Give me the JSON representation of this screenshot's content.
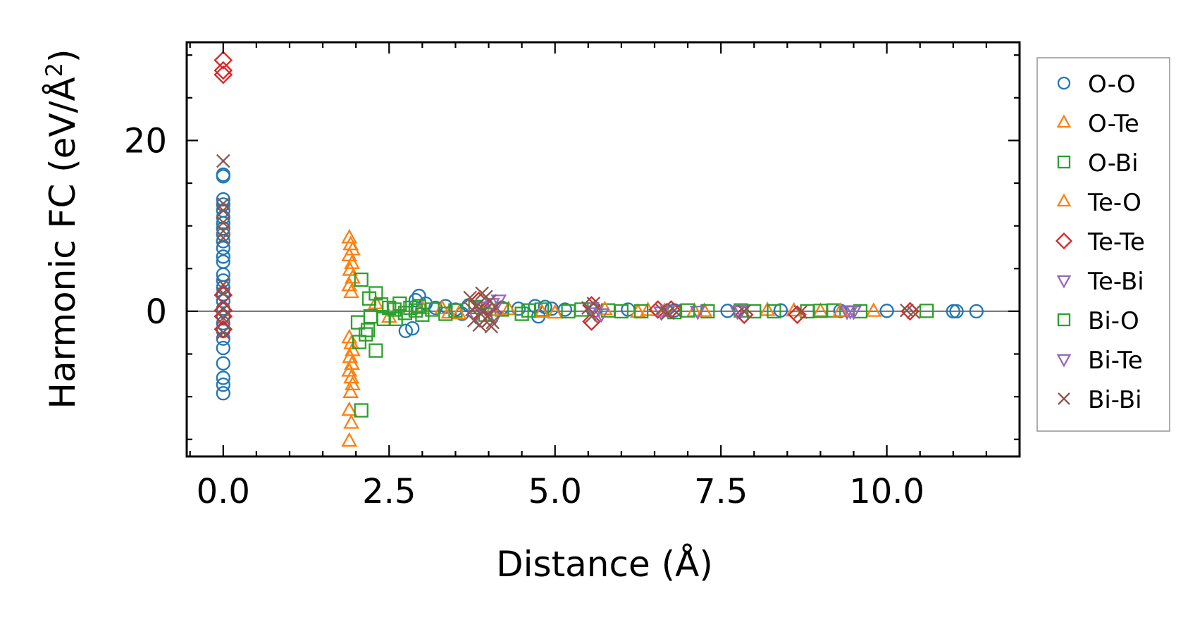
{
  "chart_data": {
    "type": "scatter",
    "title": "",
    "xlabel": "Distance (Å)",
    "ylabel_main": "Harmonic FC (eV/Å",
    "ylabel_sup": "2",
    "ylabel_close": ")",
    "xlim": [
      -0.55,
      12.0
    ],
    "ylim": [
      -17.0,
      31.5
    ],
    "xticks": [
      0.0,
      2.5,
      5.0,
      7.5,
      10.0
    ],
    "xtick_labels": [
      "0.0",
      "2.5",
      "5.0",
      "7.5",
      "10.0"
    ],
    "yticks": [
      0,
      20
    ],
    "ytick_labels": [
      "0",
      "20"
    ],
    "x_minor_step": 0.5,
    "y_minor_step": 5,
    "zero_line": true,
    "grid": false,
    "legend_position": "outside-right",
    "series": [
      {
        "name": "O-O",
        "marker": "circle",
        "color": "#1f77b4",
        "points": [
          [
            0,
            16
          ],
          [
            0,
            15.8
          ],
          [
            0,
            13.1
          ],
          [
            0,
            12.5
          ],
          [
            0,
            11.8
          ],
          [
            0,
            11
          ],
          [
            0,
            10.3
          ],
          [
            0,
            9.7
          ],
          [
            0,
            9
          ],
          [
            0,
            8.2
          ],
          [
            0,
            7.4
          ],
          [
            0,
            6.4
          ],
          [
            0,
            5.8
          ],
          [
            0,
            4.3
          ],
          [
            0,
            3.6
          ],
          [
            0,
            2.8
          ],
          [
            0,
            2
          ],
          [
            0,
            1.2
          ],
          [
            0,
            0.3
          ],
          [
            0,
            -0.6
          ],
          [
            0,
            -1.4
          ],
          [
            0,
            -2.3
          ],
          [
            0,
            -3.2
          ],
          [
            0,
            -4.3
          ],
          [
            0,
            -6.1
          ],
          [
            0,
            -7.8
          ],
          [
            0,
            -8.6
          ],
          [
            0,
            -9.6
          ],
          [
            2.75,
            -2.3
          ],
          [
            2.85,
            -2
          ],
          [
            2.9,
            1.3
          ],
          [
            2.95,
            1.8
          ],
          [
            3.05,
            0.9
          ],
          [
            3.2,
            0.4
          ],
          [
            3.35,
            0.6
          ],
          [
            3.5,
            0.2
          ],
          [
            3.6,
            -0.3
          ],
          [
            3.7,
            0.7
          ],
          [
            4.2,
            0.4
          ],
          [
            4.45,
            0.3
          ],
          [
            4.7,
            0.6
          ],
          [
            4.75,
            -0.6
          ],
          [
            4.85,
            0.5
          ],
          [
            4.95,
            0.3
          ],
          [
            5.15,
            0.2
          ],
          [
            5.6,
            0.1
          ],
          [
            6.1,
            0.2
          ],
          [
            6.8,
            0.1
          ],
          [
            7.6,
            0.05
          ],
          [
            8.4,
            0.1
          ],
          [
            9.3,
            0.05
          ],
          [
            10.0,
            0.05
          ],
          [
            11.0,
            0
          ],
          [
            11.05,
            0
          ],
          [
            11.35,
            0
          ]
        ]
      },
      {
        "name": "O-Te",
        "marker": "triangle-up",
        "color": "#ff7f0e",
        "points": [
          [
            1.9,
            8.6
          ],
          [
            1.92,
            7.8
          ],
          [
            1.95,
            7.2
          ],
          [
            1.9,
            6.5
          ],
          [
            1.94,
            5.6
          ],
          [
            1.91,
            4.8
          ],
          [
            1.95,
            3.9
          ],
          [
            1.9,
            3
          ],
          [
            1.93,
            2.2
          ],
          [
            1.9,
            -3.1
          ],
          [
            1.93,
            -3.8
          ],
          [
            1.95,
            -4.6
          ],
          [
            1.91,
            -5.4
          ],
          [
            1.94,
            -6.2
          ],
          [
            1.9,
            -7
          ],
          [
            1.93,
            -7.8
          ],
          [
            1.95,
            -8.6
          ],
          [
            1.92,
            -9.5
          ],
          [
            1.9,
            -11.6
          ],
          [
            1.93,
            -13.1
          ],
          [
            1.9,
            -15.2
          ],
          [
            2.3,
            0.9
          ],
          [
            2.5,
            -0.7
          ],
          [
            3.0,
            0.3
          ],
          [
            3.4,
            -0.2
          ],
          [
            4.3,
            0.2
          ],
          [
            5.0,
            -0.2
          ],
          [
            6.4,
            0.1
          ],
          [
            6.25,
            -0.1
          ],
          [
            7.25,
            0
          ],
          [
            8.2,
            0.1
          ],
          [
            9.0,
            0
          ],
          [
            9.8,
            0
          ]
        ]
      },
      {
        "name": "O-Bi",
        "marker": "square",
        "color": "#2ca02c",
        "points": [
          [
            2.08,
            3.7
          ],
          [
            2.03,
            -1.3
          ],
          [
            2.05,
            -3.6
          ],
          [
            2.08,
            -11.6
          ],
          [
            2.15,
            -2.7
          ],
          [
            2.18,
            -2.2
          ],
          [
            2.2,
            1.5
          ],
          [
            2.22,
            -0.6
          ],
          [
            2.3,
            -4.6
          ],
          [
            2.3,
            2.1
          ],
          [
            2.38,
            0.8
          ],
          [
            2.42,
            -0.9
          ],
          [
            2.5,
            0.4
          ],
          [
            2.58,
            0.2
          ],
          [
            2.66,
            0.9
          ],
          [
            2.74,
            -0.2
          ],
          [
            2.82,
            0.4
          ],
          [
            2.9,
            0.1
          ],
          [
            3.0,
            -0.4
          ],
          [
            3.15,
            0.2
          ],
          [
            3.5,
            0.1
          ],
          [
            3.8,
            0.5
          ],
          [
            4.2,
            0.2
          ],
          [
            4.5,
            -0.3
          ],
          [
            4.8,
            0.2
          ],
          [
            5.2,
            0
          ],
          [
            5.8,
            0.1
          ],
          [
            6.3,
            0
          ],
          [
            6.8,
            -0.1
          ],
          [
            7.3,
            0
          ],
          [
            7.8,
            0.1
          ],
          [
            8.3,
            0
          ],
          [
            8.8,
            0
          ],
          [
            9.2,
            0.1
          ],
          [
            9.6,
            0
          ]
        ]
      },
      {
        "name": "Te-O",
        "marker": "triangle-up",
        "color": "#ff7f0e",
        "points": [
          [
            3.3,
            0.3
          ],
          [
            3.55,
            -0.3
          ],
          [
            4.05,
            0.1
          ],
          [
            4.8,
            -0.1
          ],
          [
            5.75,
            0.2
          ],
          [
            6.65,
            0
          ],
          [
            7.1,
            0
          ],
          [
            8.6,
            0.05
          ],
          [
            9.3,
            0
          ]
        ]
      },
      {
        "name": "Te-Te",
        "marker": "diamond",
        "color": "#d62728",
        "points": [
          [
            0,
            29.4
          ],
          [
            0,
            28.2
          ],
          [
            0,
            27.7
          ],
          [
            0,
            1.9
          ],
          [
            0,
            0.1
          ],
          [
            0,
            -0.6
          ],
          [
            0,
            -2.1
          ],
          [
            3.85,
            1.2
          ],
          [
            3.9,
            -0.9
          ],
          [
            4.0,
            0.4
          ],
          [
            5.55,
            0.7
          ],
          [
            5.55,
            -1.2
          ],
          [
            6.55,
            0.2
          ],
          [
            6.75,
            0.2
          ],
          [
            7.85,
            -0.4
          ],
          [
            8.65,
            -0.4
          ],
          [
            10.35,
            0
          ]
        ]
      },
      {
        "name": "Te-Bi",
        "marker": "triangle-down",
        "color": "#9467bd",
        "points": [
          [
            3.9,
            0.5
          ],
          [
            4.15,
            1.3
          ],
          [
            4.1,
            -0.6
          ],
          [
            5.55,
            0.4
          ],
          [
            5.7,
            -0.3
          ],
          [
            6.7,
            0.1
          ],
          [
            7.15,
            0
          ],
          [
            7.8,
            0.1
          ],
          [
            9.4,
            0
          ],
          [
            9.5,
            0
          ]
        ]
      },
      {
        "name": "Bi-O",
        "marker": "square",
        "color": "#2ca02c",
        "points": [
          [
            2.6,
            -0.9
          ],
          [
            2.95,
            0.6
          ],
          [
            3.35,
            -0.3
          ],
          [
            3.95,
            -0.4
          ],
          [
            4.6,
            0.1
          ],
          [
            5.4,
            0.2
          ],
          [
            6.0,
            0
          ],
          [
            7.0,
            0.1
          ],
          [
            8.0,
            0
          ],
          [
            9.0,
            0.05
          ],
          [
            10.6,
            0.05
          ]
        ]
      },
      {
        "name": "Bi-Te",
        "marker": "triangle-down",
        "color": "#9467bd",
        "points": [
          [
            3.8,
            -0.5
          ],
          [
            4.05,
            0.9
          ],
          [
            5.6,
            -0.2
          ],
          [
            6.6,
            -0.1
          ],
          [
            7.75,
            0
          ],
          [
            9.45,
            0.05
          ]
        ]
      },
      {
        "name": "Bi-Bi",
        "marker": "x",
        "color": "#8c564b",
        "points": [
          [
            0,
            17.6
          ],
          [
            0,
            12.6
          ],
          [
            0,
            11.8
          ],
          [
            0,
            10.4
          ],
          [
            0,
            9.4
          ],
          [
            0,
            8.6
          ],
          [
            0,
            3.1
          ],
          [
            0,
            2.1
          ],
          [
            0,
            0.2
          ],
          [
            0,
            -0.8
          ],
          [
            0,
            -2.5
          ],
          [
            3.72,
            1.6
          ],
          [
            3.78,
            -1.1
          ],
          [
            3.82,
            0.6
          ],
          [
            3.86,
            -1.6
          ],
          [
            3.9,
            2.1
          ],
          [
            3.94,
            0.1
          ],
          [
            3.98,
            -0.6
          ],
          [
            4.02,
            1.2
          ],
          [
            4.06,
            -1.3
          ],
          [
            4.1,
            0.5
          ],
          [
            3.75,
            0.2
          ],
          [
            3.88,
            -0.3
          ],
          [
            3.96,
            1.7
          ],
          [
            4.04,
            -1.8
          ],
          [
            5.5,
            0.4
          ],
          [
            5.55,
            -0.6
          ],
          [
            5.58,
            0.9
          ],
          [
            6.6,
            0.2
          ],
          [
            6.7,
            -0.2
          ],
          [
            6.8,
            0.1
          ],
          [
            7.85,
            0
          ],
          [
            8.7,
            -0.1
          ],
          [
            10.3,
            0.1
          ],
          [
            10.4,
            -0.1
          ]
        ]
      }
    ]
  }
}
